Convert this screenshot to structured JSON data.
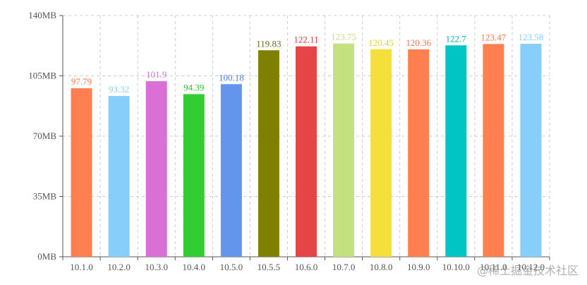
{
  "chart_data": {
    "type": "bar",
    "categories": [
      "10.1.0",
      "10.2.0",
      "10.3.0",
      "10.4.0",
      "10.5.0",
      "10.5.5",
      "10.6.0",
      "10.7.0",
      "10.8.0",
      "10.9.0",
      "10.10.0",
      "10.11.0",
      "10.12.0"
    ],
    "values": [
      97.79,
      93.32,
      101.9,
      94.39,
      100.18,
      119.83,
      122.11,
      123.75,
      120.45,
      120.36,
      122.7,
      123.47,
      123.58
    ],
    "value_labels": [
      "97.79",
      "93.32",
      "101.9",
      "94.39",
      "100.18",
      "119.83",
      "122.11",
      "123.75",
      "120.45",
      "120.36",
      "122.7",
      "123.47",
      "123.58"
    ],
    "colors": [
      "#ff7f50",
      "#87cefa",
      "#da70d6",
      "#32cd32",
      "#6495ed",
      "#808000",
      "#e64545",
      "#c4e17f",
      "#f5e03b",
      "#ff7f50",
      "#00c5c5",
      "#ff7f50",
      "#87cefa"
    ],
    "label_colors": [
      "#f07850",
      "#87cefa",
      "#da70d6",
      "#2fbf2f",
      "#4a7fd8",
      "#6b6b1a",
      "#d63a3a",
      "#c4e17f",
      "#e8d030",
      "#f07850",
      "#00b2b2",
      "#f07850",
      "#87cefa"
    ],
    "ylim": [
      0,
      140
    ],
    "yticks": [
      0,
      35,
      70,
      105,
      140
    ],
    "ytick_labels": [
      "0MB",
      "35MB",
      "70MB",
      "105MB",
      "140MB"
    ],
    "grid": true,
    "title": "",
    "xlabel": "",
    "ylabel": ""
  },
  "watermark": "@稀土掘金技术社区"
}
